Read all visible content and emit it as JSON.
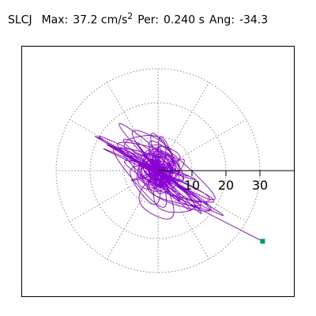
{
  "header": {
    "station": "SLCJ",
    "max_label": "Max:",
    "max_value": "37.2",
    "max_unit": "cm/s",
    "max_unit_sup": "2",
    "per_label": "Per:",
    "per_value": "0.240 s",
    "ang_label": "Ang:",
    "ang_value": "-34.3"
  },
  "chart_data": {
    "type": "line",
    "polar_rings": [
      10,
      20,
      30
    ],
    "tick_labels": [
      "10",
      "20",
      "30"
    ],
    "max_radius": 30,
    "peak_angle_deg": -34.3,
    "peak_value": 37.2,
    "colors": {
      "trace": "#8a00d4",
      "marker": "#009a7a",
      "grid": "#888888",
      "axis": "#000000"
    },
    "trace": [
      [
        0,
        0
      ],
      [
        2.1,
        1.4
      ],
      [
        -3.2,
        -2.0
      ],
      [
        4.5,
        -1.2
      ],
      [
        -2.6,
        3.1
      ],
      [
        1.5,
        -4.0
      ],
      [
        -5.1,
        1.8
      ],
      [
        3.8,
        2.6
      ],
      [
        -1.2,
        -5.3
      ],
      [
        6.0,
        -3.0
      ],
      [
        -7.2,
        3.5
      ],
      [
        8.3,
        -4.2
      ],
      [
        -9.0,
        5.0
      ],
      [
        4.1,
        -8.2
      ],
      [
        -3.5,
        7.6
      ],
      [
        12.5,
        -6.1
      ],
      [
        -14.0,
        6.8
      ],
      [
        15.2,
        -9.0
      ],
      [
        -16.5,
        8.2
      ],
      [
        6.0,
        12.0
      ],
      [
        -5.0,
        -13.0
      ],
      [
        18.0,
        -11.5
      ],
      [
        -20.5,
        10.8
      ],
      [
        10.2,
        4.5
      ],
      [
        -9.1,
        -6.3
      ],
      [
        22.0,
        -13.0
      ],
      [
        -24.0,
        12.5
      ],
      [
        5.5,
        -3.1
      ],
      [
        -3.2,
        2.4
      ],
      [
        2.0,
        9.5
      ],
      [
        -2.5,
        -10.4
      ],
      [
        7.8,
        6.6
      ],
      [
        -8.1,
        -7.0
      ],
      [
        26.0,
        -15.1
      ],
      [
        -27.0,
        14.8
      ],
      [
        3.1,
        1.2
      ],
      [
        -1.6,
        -0.8
      ],
      [
        0.8,
        11.0
      ],
      [
        -1.5,
        -12.2
      ],
      [
        12.0,
        8.0
      ],
      [
        -11.0,
        -8.5
      ],
      [
        9.5,
        -18.0
      ],
      [
        -8.8,
        17.5
      ],
      [
        28.0,
        -17.0
      ],
      [
        -29.0,
        16.0
      ],
      [
        4.0,
        -2.0
      ],
      [
        -3.0,
        1.5
      ],
      [
        14.0,
        -3.0
      ],
      [
        -13.0,
        4.0
      ],
      [
        2.0,
        -16.0
      ],
      [
        -1.0,
        15.0
      ],
      [
        6.5,
        0.5
      ],
      [
        -5.5,
        -1.0
      ],
      [
        30.0,
        -19.0
      ],
      [
        -25.0,
        13.5
      ],
      [
        8.0,
        -6.0
      ],
      [
        -6.0,
        5.0
      ],
      [
        16.0,
        -12.0
      ],
      [
        -15.5,
        11.5
      ],
      [
        0.5,
        6.0
      ],
      [
        -0.5,
        -6.5
      ],
      [
        19.0,
        -14.0
      ],
      [
        -18.0,
        13.0
      ],
      [
        3.0,
        -10.0
      ],
      [
        -2.0,
        9.0
      ],
      [
        10.0,
        -2.0
      ],
      [
        -9.0,
        3.0
      ],
      [
        1.0,
        -1.0
      ],
      [
        -12.0,
        -4.0
      ],
      [
        11.5,
        3.5
      ],
      [
        -6.0,
        10.0
      ],
      [
        5.0,
        -9.5
      ],
      [
        21.0,
        -9.0
      ],
      [
        -20.0,
        8.5
      ],
      [
        4.0,
        4.0
      ],
      [
        -4.0,
        -4.0
      ],
      [
        24.0,
        -16.0
      ],
      [
        -22.0,
        15.0
      ],
      [
        7.0,
        -20.0
      ],
      [
        -6.0,
        19.0
      ],
      [
        13.0,
        -8.0
      ],
      [
        -12.0,
        7.0
      ],
      [
        2.0,
        2.0
      ],
      [
        -2.0,
        -2.0
      ],
      [
        15.0,
        -17.0
      ],
      [
        -14.0,
        16.0
      ],
      [
        9.0,
        5.0
      ],
      [
        -8.0,
        -5.0
      ],
      [
        27.0,
        -12.0
      ],
      [
        -26.0,
        11.0
      ],
      [
        6.0,
        -4.0
      ],
      [
        -5.0,
        3.0
      ],
      [
        11.0,
        -14.0
      ],
      [
        -10.0,
        13.0
      ],
      [
        1.5,
        -3.0
      ],
      [
        -1.5,
        3.0
      ],
      [
        17.0,
        -5.0
      ],
      [
        -16.0,
        6.0
      ],
      [
        3.5,
        -7.5
      ],
      [
        -3.0,
        7.0
      ],
      [
        20.0,
        -21.0
      ],
      [
        -19.0,
        20.0
      ],
      [
        5.5,
        2.5
      ],
      [
        -5.0,
        -2.5
      ],
      [
        30.8,
        -20.8
      ]
    ]
  }
}
